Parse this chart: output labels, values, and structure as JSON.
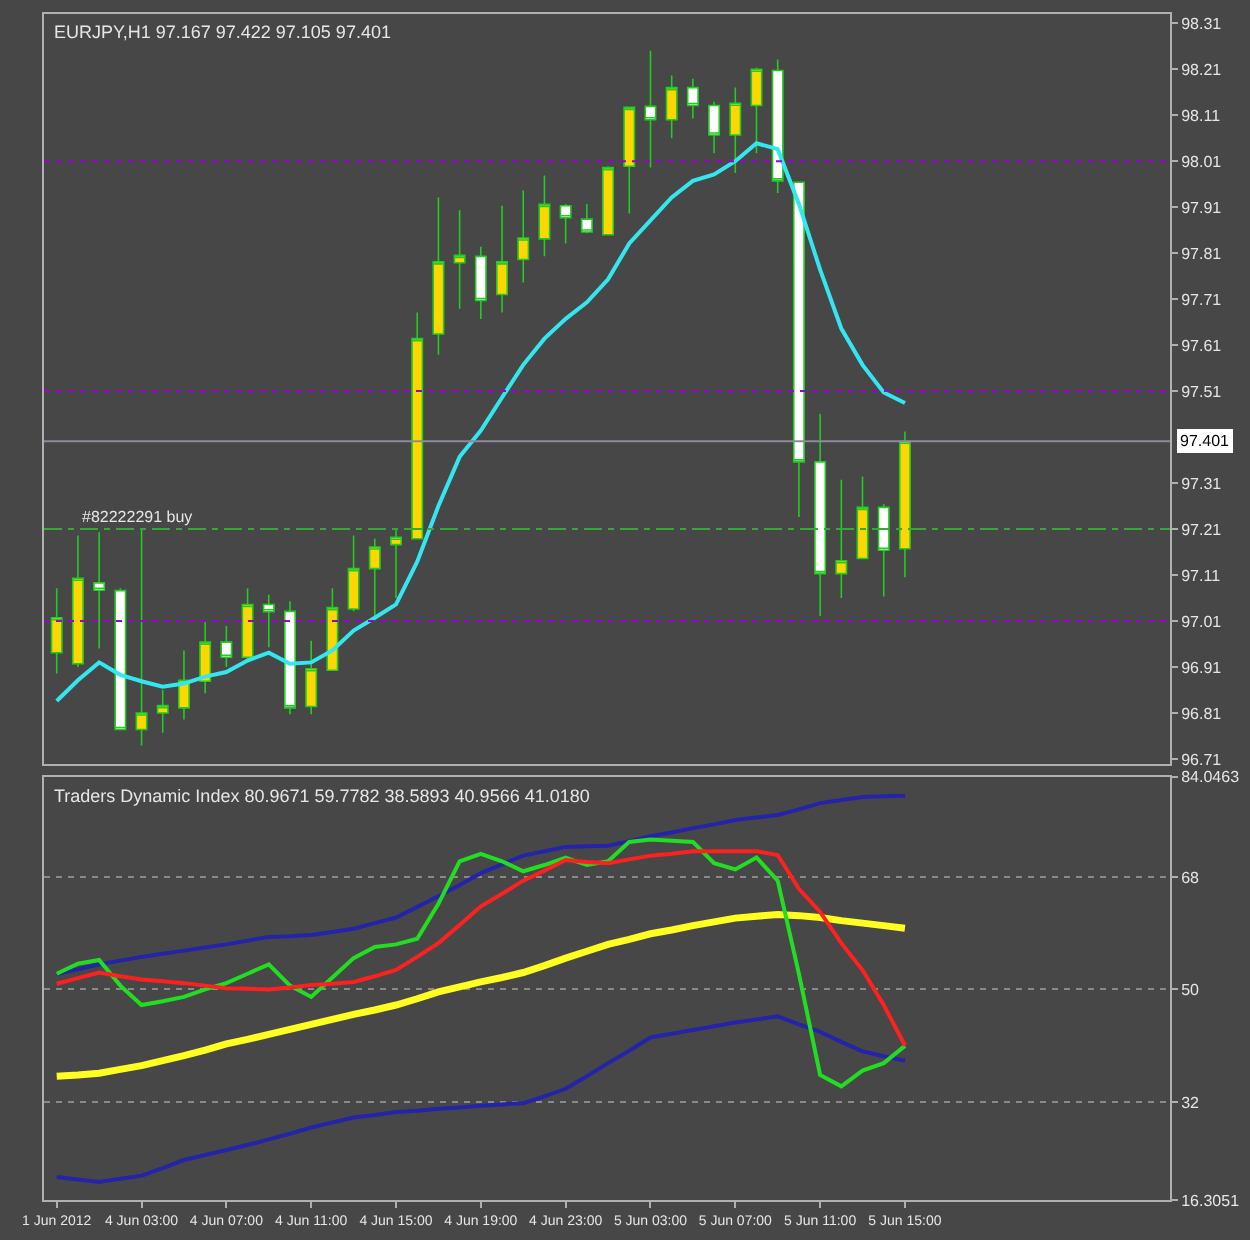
{
  "chart_data": [
    {
      "type": "candlestick",
      "title": "EURJPY,H1 97.167 97.422 97.105 97.401",
      "categories": [
        null,
        null,
        null,
        null,
        null,
        null,
        null,
        null,
        null,
        null,
        null,
        null,
        null,
        null,
        null,
        null,
        null,
        null,
        null,
        null,
        null,
        null,
        null,
        null,
        null,
        null,
        null,
        null,
        null,
        null,
        null,
        null,
        null,
        null,
        null,
        null,
        null,
        null,
        null,
        null,
        null
      ],
      "ohlc": [
        [
          96.941,
          97.081,
          96.896,
          97.017
        ],
        [
          96.917,
          97.196,
          96.91,
          97.103
        ],
        [
          97.093,
          97.203,
          96.95,
          97.077
        ],
        [
          97.076,
          97.081,
          96.774,
          96.774
        ],
        [
          96.774,
          97.21,
          96.739,
          96.81
        ],
        [
          96.81,
          96.86,
          96.767,
          96.826
        ],
        [
          96.821,
          96.946,
          96.796,
          96.881
        ],
        [
          96.879,
          97.01,
          96.853,
          96.964
        ],
        [
          96.964,
          96.999,
          96.91,
          96.931
        ],
        [
          96.931,
          97.081,
          96.924,
          97.046
        ],
        [
          97.046,
          97.067,
          96.953,
          97.03
        ],
        [
          97.031,
          97.053,
          96.807,
          96.821
        ],
        [
          96.824,
          96.967,
          96.807,
          96.906
        ],
        [
          96.903,
          97.081,
          96.903,
          97.039
        ],
        [
          97.036,
          97.196,
          97.031,
          97.124
        ],
        [
          97.124,
          97.189,
          97.017,
          97.171
        ],
        [
          97.176,
          97.21,
          97.06,
          97.192
        ],
        [
          97.189,
          97.681,
          97.189,
          97.624
        ],
        [
          97.634,
          97.931,
          97.589,
          97.791
        ],
        [
          97.789,
          97.903,
          97.689,
          97.805
        ],
        [
          97.803,
          97.824,
          97.667,
          97.707
        ],
        [
          97.72,
          97.913,
          97.681,
          97.791
        ],
        [
          97.796,
          97.946,
          97.746,
          97.843
        ],
        [
          97.841,
          97.979,
          97.803,
          97.916
        ],
        [
          97.913,
          97.917,
          97.831,
          97.887
        ],
        [
          97.884,
          97.917,
          97.853,
          97.856
        ],
        [
          97.85,
          97.999,
          97.85,
          97.996
        ],
        [
          97.999,
          98.127,
          97.896,
          98.127
        ],
        [
          98.129,
          98.25,
          97.996,
          98.1
        ],
        [
          98.1,
          98.196,
          98.06,
          98.17
        ],
        [
          98.17,
          98.189,
          98.103,
          98.131
        ],
        [
          98.131,
          98.139,
          98.027,
          98.067
        ],
        [
          98.067,
          98.17,
          97.984,
          98.136
        ],
        [
          98.131,
          98.213,
          98.027,
          98.21
        ],
        [
          98.207,
          98.231,
          97.941,
          97.967
        ],
        [
          97.964,
          97.964,
          97.236,
          97.356
        ],
        [
          97.356,
          97.46,
          97.021,
          97.113
        ],
        [
          97.113,
          97.317,
          97.06,
          97.141
        ],
        [
          97.146,
          97.324,
          97.146,
          97.257
        ],
        [
          97.257,
          97.264,
          97.063,
          97.164
        ],
        [
          97.167,
          97.422,
          97.105,
          97.401
        ]
      ],
      "colors": [
        "#ffd700",
        "#ffd700",
        "#ffffff",
        "#ffffff",
        "#ffd700",
        "#ffd700",
        "#ffd700",
        "#ffd700",
        "#ffffff",
        "#ffd700",
        "#ffffff",
        "#ffffff",
        "#ffd700",
        "#ffd700",
        "#ffd700",
        "#ffd700",
        "#ffd700",
        "#ffd700",
        "#ffd700",
        "#ffd700",
        "#ffffff",
        "#ffd700",
        "#ffd700",
        "#ffd700",
        "#ffffff",
        "#ffffff",
        "#ffd700",
        "#ffd700",
        "#ffffff",
        "#ffd700",
        "#ffffff",
        "#ffffff",
        "#ffd700",
        "#ffd700",
        "#ffffff",
        "#ffffff",
        "#ffffff",
        "#ffd700",
        "#ffd700",
        "#ffffff",
        "#ffd700"
      ],
      "color": "#22cc22",
      "series": [
        {
          "type": "line",
          "color": "#33e6f0",
          "values": [
            96.836,
            96.881,
            96.92,
            96.893,
            96.879,
            96.867,
            96.874,
            96.889,
            96.899,
            96.924,
            96.941,
            96.917,
            96.92,
            96.946,
            96.989,
            97.017,
            97.046,
            97.139,
            97.26,
            97.367,
            97.424,
            97.496,
            97.567,
            97.624,
            97.667,
            97.703,
            97.753,
            97.831,
            97.881,
            97.931,
            97.967,
            97.981,
            98.01,
            98.049,
            98.036,
            97.917,
            97.774,
            97.646,
            97.567,
            97.507,
            97.484
          ]
        }
      ],
      "ylim": [
        96.7,
        98.33
      ],
      "yticks": [
        98.31,
        98.21,
        98.11,
        98.01,
        97.91,
        97.81,
        97.71,
        97.61,
        97.51,
        97.31,
        97.21,
        97.11,
        97.01,
        96.91,
        96.81,
        96.71
      ],
      "ref_lines": [
        {
          "axis": "y",
          "value": 98.01,
          "label": null,
          "color": "#9a00d0",
          "line_style": "dotted"
        },
        {
          "axis": "y",
          "value": 97.51,
          "label": null,
          "color": "#9a00d0",
          "line_style": "dotted"
        },
        {
          "axis": "y",
          "value": 97.01,
          "label": null,
          "color": "#9a00d0",
          "line_style": "dotted"
        },
        {
          "axis": "y",
          "value": 97.401,
          "label": "97.401",
          "color": "#8a8a9a",
          "line_style": "solid"
        },
        {
          "axis": "y",
          "value": 97.21,
          "label": "#82222291 buy",
          "color": "#33aa33",
          "line_style": "dashed"
        }
      ]
    },
    {
      "type": "line",
      "title": "Traders Dynamic Index 80.9671 59.7782 38.5893 40.9566 41.0180",
      "categories": [
        "1 Jun 2012",
        null,
        null,
        null,
        "4 Jun 03:00",
        null,
        null,
        null,
        "4 Jun 07:00",
        null,
        null,
        null,
        "4 Jun 11:00",
        null,
        null,
        null,
        "4 Jun 15:00",
        null,
        null,
        null,
        "4 Jun 19:00",
        null,
        null,
        null,
        "4 Jun 23:00",
        null,
        null,
        null,
        "5 Jun 03:00",
        null,
        null,
        null,
        "5 Jun 07:00",
        null,
        null,
        null,
        "5 Jun 11:00",
        null,
        null,
        null,
        "5 Jun 15:00"
      ],
      "series": [
        {
          "color": "#2424a8",
          "values": [
            52.5,
            53.2,
            54.0,
            54.6,
            55.2,
            55.7,
            56.2,
            56.7,
            57.2,
            57.8,
            58.4,
            58.5,
            58.7,
            59.2,
            59.7,
            60.6,
            61.5,
            63.2,
            64.9,
            66.7,
            68.6,
            70.0,
            71.4,
            72.1,
            72.8,
            72.9,
            73.0,
            73.7,
            74.5,
            75.1,
            75.8,
            76.4,
            77.1,
            77.5,
            77.9,
            78.8,
            79.8,
            80.3,
            80.8,
            80.9,
            80.9671
          ]
        },
        {
          "color": "#ffff22",
          "values": [
            36.1,
            36.3,
            36.6,
            37.2,
            37.8,
            38.6,
            39.4,
            40.3,
            41.3,
            42.0,
            42.8,
            43.6,
            44.4,
            45.2,
            46.0,
            46.7,
            47.5,
            48.5,
            49.6,
            50.4,
            51.2,
            51.9,
            52.7,
            53.8,
            55.0,
            56.1,
            57.2,
            58.0,
            58.9,
            59.5,
            60.2,
            60.8,
            61.4,
            61.7,
            62.0,
            61.8,
            61.5,
            61.0,
            60.6,
            60.2,
            59.7782
          ]
        },
        {
          "color": "#2424a8",
          "values": [
            20.0,
            19.6,
            19.2,
            19.7,
            20.2,
            21.4,
            22.7,
            23.5,
            24.3,
            25.1,
            26.0,
            26.9,
            27.9,
            28.7,
            29.5,
            29.9,
            30.4,
            30.6,
            30.9,
            31.1,
            31.4,
            31.6,
            31.8,
            32.9,
            34.1,
            36.1,
            38.2,
            40.2,
            42.3,
            42.9,
            43.5,
            44.1,
            44.7,
            45.2,
            45.7,
            44.4,
            43.2,
            41.6,
            40.1,
            39.3,
            38.5893
          ]
        },
        {
          "color": "#22dd22",
          "values": [
            52.5,
            54.1,
            54.7,
            50.6,
            47.5,
            48.1,
            48.8,
            50.0,
            51.0,
            52.5,
            54.0,
            50.6,
            48.8,
            51.9,
            55.0,
            56.8,
            57.2,
            58.1,
            63.7,
            70.5,
            71.7,
            70.5,
            68.9,
            69.9,
            71.1,
            69.9,
            70.5,
            73.6,
            74.0,
            73.8,
            73.6,
            70.2,
            69.2,
            71.1,
            67.4,
            52.5,
            36.3,
            34.5,
            37.0,
            38.2,
            40.9566
          ]
        },
        {
          "color": "#ff2020",
          "values": [
            50.9,
            51.8,
            52.7,
            52.1,
            51.6,
            51.3,
            51.0,
            50.6,
            50.2,
            50.1,
            50.0,
            50.3,
            50.7,
            50.9,
            51.2,
            52.1,
            53.1,
            55.2,
            57.4,
            60.3,
            63.3,
            65.3,
            67.4,
            69.0,
            70.7,
            70.4,
            70.2,
            70.8,
            71.4,
            71.7,
            72.1,
            72.1,
            72.1,
            72.1,
            71.5,
            66.1,
            62.4,
            57.4,
            53.1,
            47.5,
            41.018
          ]
        }
      ],
      "ylim": [
        16.3051,
        84.0463
      ],
      "yticks": [
        84.0463,
        68,
        50,
        32,
        16.3051
      ],
      "grid": "y"
    }
  ]
}
